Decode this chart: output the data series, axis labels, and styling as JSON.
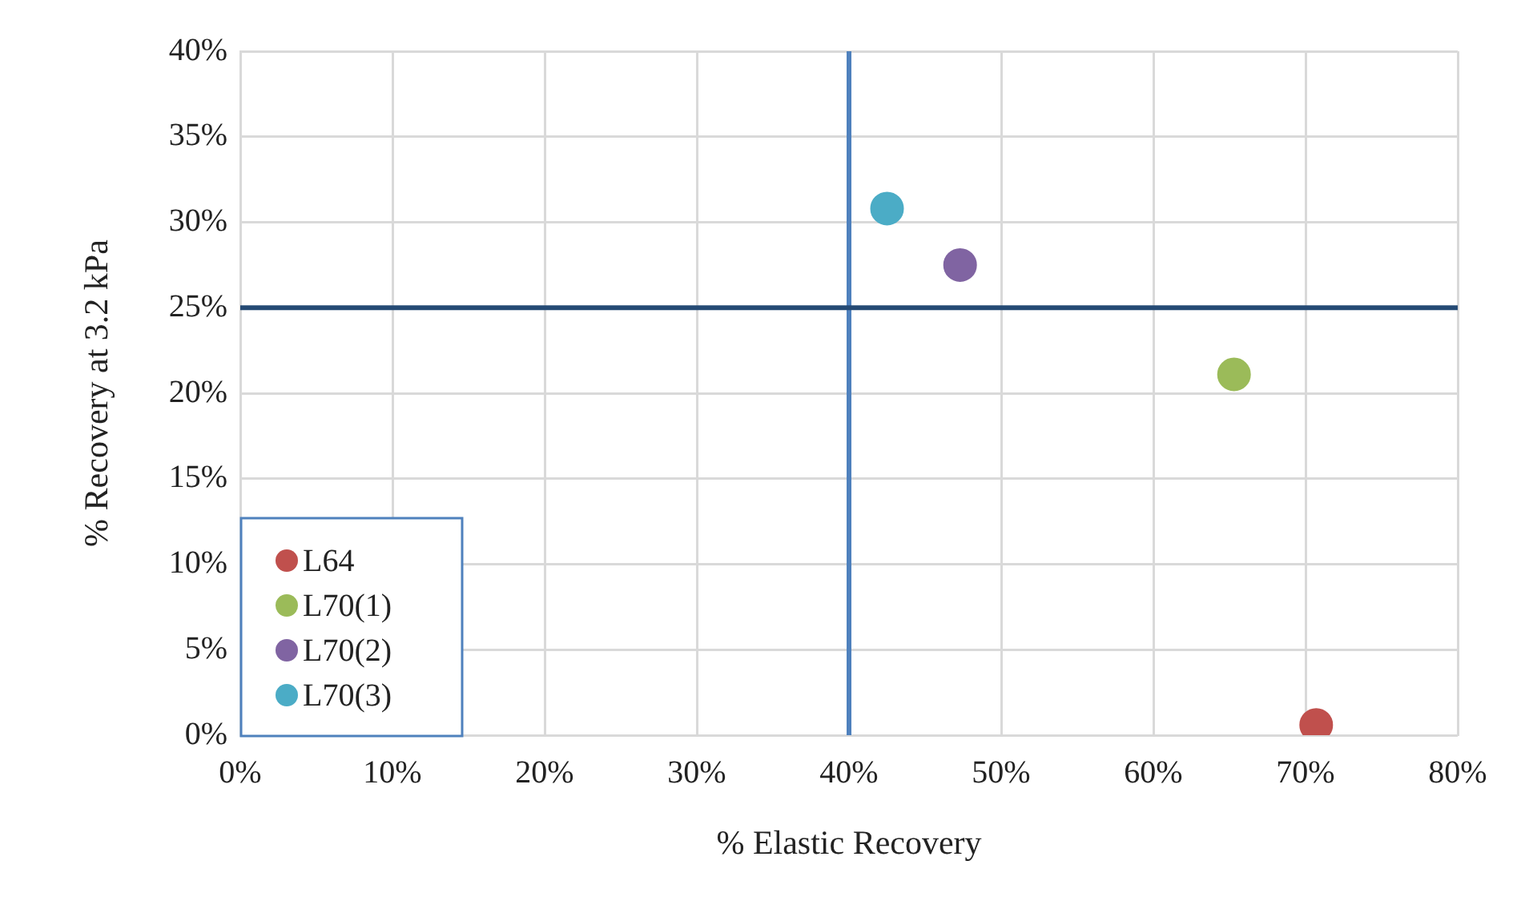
{
  "chart_data": {
    "type": "scatter",
    "xlabel": "% Elastic Recovery",
    "ylabel": "% Recovery at 3.2 kPa",
    "xlim": [
      0,
      80
    ],
    "xticks": [
      {
        "value": 0,
        "label": "0%"
      },
      {
        "value": 10,
        "label": "10%"
      },
      {
        "value": 20,
        "label": "20%"
      },
      {
        "value": 30,
        "label": "30%"
      },
      {
        "value": 40,
        "label": "40%"
      },
      {
        "value": 50,
        "label": "50%"
      },
      {
        "value": 60,
        "label": "60%"
      },
      {
        "value": 70,
        "label": "70%"
      },
      {
        "value": 80,
        "label": "80%"
      }
    ],
    "ylim": [
      0,
      40
    ],
    "yticks": [
      {
        "value": 0,
        "label": "0%"
      },
      {
        "value": 5,
        "label": "5%"
      },
      {
        "value": 10,
        "label": "10%"
      },
      {
        "value": 15,
        "label": "15%"
      },
      {
        "value": 20,
        "label": "20%"
      },
      {
        "value": 25,
        "label": "25%"
      },
      {
        "value": 30,
        "label": "30%"
      },
      {
        "value": 35,
        "label": "35%"
      },
      {
        "value": 40,
        "label": "40%"
      }
    ],
    "grid": true,
    "legend": "bottom left",
    "marker": "circle",
    "series": [
      {
        "name": "L64",
        "color": "#c0504d",
        "x": [
          70.7
        ],
        "values": [
          0.6
        ]
      },
      {
        "name": "L70(1)",
        "color": "#9bbb59",
        "x": [
          65.3
        ],
        "values": [
          21.1
        ]
      },
      {
        "name": "L70(2)",
        "color": "#8064a2",
        "x": [
          47.3
        ],
        "values": [
          27.5
        ]
      },
      {
        "name": "L70(3)",
        "color": "#4bacc6",
        "x": [
          42.5
        ],
        "values": [
          30.8
        ]
      }
    ],
    "ref_lines": [
      {
        "axis": "x",
        "value": 40,
        "color": "#4f81bd"
      },
      {
        "axis": "y",
        "value": 25,
        "color": "#254a74"
      }
    ]
  }
}
